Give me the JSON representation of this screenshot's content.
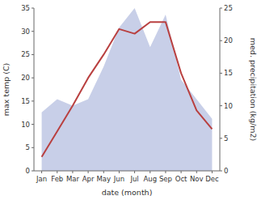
{
  "chart_data": {
    "type": "line",
    "xlabel": "date (month)",
    "ylabel": "max temp (C)",
    "y2label": "med. precipitation (kg/m2)",
    "categories": [
      "Jan",
      "Feb",
      "Mar",
      "Apr",
      "May",
      "Jun",
      "Jul",
      "Aug",
      "Sep",
      "Oct",
      "Nov",
      "Dec"
    ],
    "series": [
      {
        "type": "area",
        "axis": "y2",
        "color": "#c8cfe8",
        "values": [
          9,
          11,
          10,
          11,
          16,
          22,
          25,
          19,
          24,
          14,
          11,
          8
        ]
      },
      {
        "type": "line",
        "color": "#b94040",
        "values": [
          3.0,
          8.5,
          14.0,
          20.0,
          25.0,
          30.5,
          29.5,
          32.0,
          32.0,
          21.0,
          13.0,
          9.0
        ]
      }
    ],
    "ylim": [
      0,
      35
    ],
    "yticks": [
      0,
      5,
      10,
      15,
      20,
      25,
      30,
      35
    ],
    "y2lim": [
      0,
      25
    ],
    "y2ticks": [
      0,
      5,
      10,
      15,
      20,
      25
    ]
  }
}
